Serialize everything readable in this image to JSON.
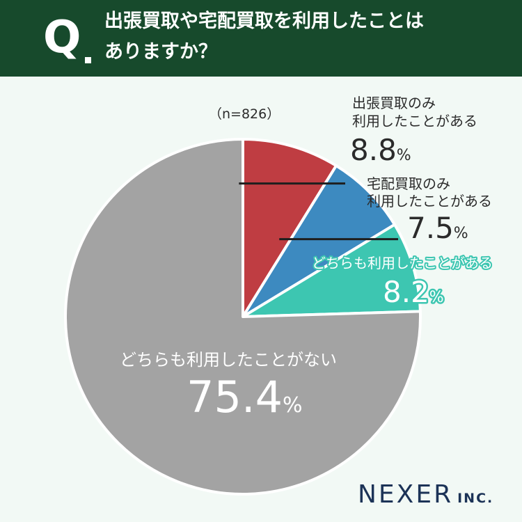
{
  "header": {
    "q_mark": "Q",
    "question_line1": "出張買取や宅配買取を利用したことは",
    "question_line2": "ありますか？",
    "bg_color": "#174a2c"
  },
  "sample_note": "（n=826）",
  "logo": {
    "name": "NEXER",
    "suffix": "INC."
  },
  "chart_data": {
    "type": "pie",
    "title": "出張買取や宅配買取を利用したことはありますか？",
    "note": "（n=826）",
    "unit": "%",
    "slices": [
      {
        "label_lines": [
          "出張買取のみ",
          "利用したことがある"
        ],
        "value": 8.8,
        "value_text": "8.8",
        "color": "#bf3d42"
      },
      {
        "label_lines": [
          "宅配買取のみ",
          "利用したことがある"
        ],
        "value": 7.5,
        "value_text": "7.5",
        "color": "#3d8ac0"
      },
      {
        "label_lines": [
          "どちらも利用したことがある"
        ],
        "value": 8.2,
        "value_text": "8.2",
        "color": "#3dc6b1"
      },
      {
        "label_lines": [
          "どちらも利用したことがない"
        ],
        "value": 75.4,
        "value_text": "75.4",
        "color": "#a3a3a3"
      }
    ]
  }
}
